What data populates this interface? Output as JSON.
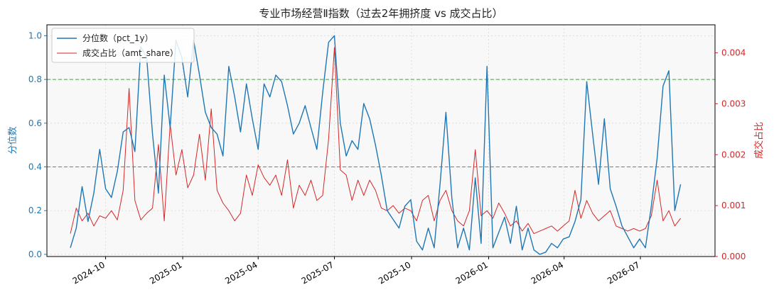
{
  "chart_data": {
    "type": "line",
    "title": "专业市场经营Ⅱ指数（过去2年拥挤度 vs 成交占比）",
    "xlabel": "",
    "ylabel_left": "分位数",
    "ylabel_right": "成交占比",
    "x_ticks": [
      "2024-10",
      "2025-01",
      "2025-04",
      "2025-07",
      "2025-10",
      "2026-01",
      "2026-04",
      "2026-07"
    ],
    "y_left_ticks": [
      "0.0",
      "0.2",
      "0.4",
      "0.6",
      "0.8",
      "1.0"
    ],
    "y_right_ticks": [
      "0.000",
      "0.001",
      "0.002",
      "0.003",
      "0.004"
    ],
    "ylim_left": [
      -0.01,
      1.05
    ],
    "ylim_right": [
      0,
      0.00455
    ],
    "xlim": [
      "2024-07-23",
      "2026-09-28"
    ],
    "grid": true,
    "legend": "top-left",
    "hlines": [
      {
        "axis": "left",
        "y": 0.8,
        "color": "#4a9a4a"
      },
      {
        "axis": "left",
        "y": 0.4,
        "color": "#d9534f"
      }
    ],
    "colors": {
      "pct_1y": "#1f77b4",
      "amt_share": "#d62728"
    },
    "series": [
      {
        "name": "分位数（pct_1y）",
        "axis": "left",
        "x": [
          "2024-08-20",
          "2024-08-27",
          "2024-09-03",
          "2024-09-10",
          "2024-09-17",
          "2024-09-24",
          "2024-10-01",
          "2024-10-08",
          "2024-10-15",
          "2024-10-22",
          "2024-10-29",
          "2024-11-05",
          "2024-11-12",
          "2024-11-19",
          "2024-11-26",
          "2024-12-03",
          "2024-12-10",
          "2024-12-17",
          "2024-12-24",
          "2024-12-31",
          "2025-01-07",
          "2025-01-14",
          "2025-01-21",
          "2025-01-28",
          "2025-02-04",
          "2025-02-11",
          "2025-02-18",
          "2025-02-25",
          "2025-03-04",
          "2025-03-11",
          "2025-03-18",
          "2025-03-25",
          "2025-04-01",
          "2025-04-08",
          "2025-04-15",
          "2025-04-22",
          "2025-04-29",
          "2025-05-06",
          "2025-05-13",
          "2025-05-20",
          "2025-05-27",
          "2025-06-03",
          "2025-06-10",
          "2025-06-17",
          "2025-06-24",
          "2025-07-01",
          "2025-07-08",
          "2025-07-15",
          "2025-07-22",
          "2025-07-29",
          "2025-08-05",
          "2025-08-12",
          "2025-08-19",
          "2025-08-26",
          "2025-09-02",
          "2025-09-09",
          "2025-09-16",
          "2025-09-23",
          "2025-09-30",
          "2025-10-07",
          "2025-10-14",
          "2025-10-21",
          "2025-10-28",
          "2025-11-04",
          "2025-11-11",
          "2025-11-18",
          "2025-11-25",
          "2025-12-02",
          "2025-12-09",
          "2025-12-16",
          "2025-12-23",
          "2025-12-30",
          "2026-01-06",
          "2026-01-13",
          "2026-01-20",
          "2026-01-27",
          "2026-02-03",
          "2026-02-10",
          "2026-02-17",
          "2026-02-24",
          "2026-03-03",
          "2026-03-10",
          "2026-03-17",
          "2026-03-24",
          "2026-03-31",
          "2026-04-07",
          "2026-04-14",
          "2026-04-21",
          "2026-04-28",
          "2026-05-05",
          "2026-05-12",
          "2026-05-19",
          "2026-05-26",
          "2026-06-02",
          "2026-06-09",
          "2026-06-16",
          "2026-06-23",
          "2026-06-30",
          "2026-07-07",
          "2026-07-14",
          "2026-07-21",
          "2026-07-28",
          "2026-08-04",
          "2026-08-11",
          "2026-08-18"
        ],
        "values": [
          0.03,
          0.12,
          0.31,
          0.15,
          0.28,
          0.48,
          0.3,
          0.26,
          0.38,
          0.56,
          0.58,
          0.47,
          0.95,
          0.9,
          0.55,
          0.28,
          0.82,
          0.58,
          0.98,
          0.9,
          0.72,
          0.98,
          0.82,
          0.65,
          0.58,
          0.55,
          0.45,
          0.86,
          0.72,
          0.56,
          0.78,
          0.62,
          0.48,
          0.78,
          0.72,
          0.82,
          0.79,
          0.68,
          0.55,
          0.6,
          0.68,
          0.58,
          0.48,
          0.74,
          0.97,
          1.0,
          0.6,
          0.45,
          0.52,
          0.48,
          0.69,
          0.62,
          0.5,
          0.36,
          0.2,
          0.16,
          0.12,
          0.22,
          0.25,
          0.06,
          0.02,
          0.12,
          0.03,
          0.32,
          0.65,
          0.26,
          0.03,
          0.12,
          0.02,
          0.35,
          0.05,
          0.86,
          0.03,
          0.1,
          0.17,
          0.05,
          0.22,
          0.02,
          0.12,
          0.02,
          0.0,
          0.01,
          0.05,
          0.03,
          0.07,
          0.08,
          0.15,
          0.25,
          0.79,
          0.55,
          0.32,
          0.62,
          0.3,
          0.22,
          0.13,
          0.08,
          0.03,
          0.07,
          0.03,
          0.22,
          0.44,
          0.77,
          0.84,
          0.2,
          0.32
        ]
      },
      {
        "name": "成交占比（amt_share）",
        "axis": "right",
        "x": [
          "2024-08-20",
          "2024-08-27",
          "2024-09-03",
          "2024-09-10",
          "2024-09-17",
          "2024-09-24",
          "2024-10-01",
          "2024-10-08",
          "2024-10-15",
          "2024-10-22",
          "2024-10-29",
          "2024-11-05",
          "2024-11-12",
          "2024-11-19",
          "2024-11-26",
          "2024-12-03",
          "2024-12-10",
          "2024-12-17",
          "2024-12-24",
          "2024-12-31",
          "2025-01-07",
          "2025-01-14",
          "2025-01-21",
          "2025-01-28",
          "2025-02-04",
          "2025-02-11",
          "2025-02-18",
          "2025-02-25",
          "2025-03-04",
          "2025-03-11",
          "2025-03-18",
          "2025-03-25",
          "2025-04-01",
          "2025-04-08",
          "2025-04-15",
          "2025-04-22",
          "2025-04-29",
          "2025-05-06",
          "2025-05-13",
          "2025-05-20",
          "2025-05-27",
          "2025-06-03",
          "2025-06-10",
          "2025-06-17",
          "2025-06-24",
          "2025-07-01",
          "2025-07-08",
          "2025-07-15",
          "2025-07-22",
          "2025-07-29",
          "2025-08-05",
          "2025-08-12",
          "2025-08-19",
          "2025-08-26",
          "2025-09-02",
          "2025-09-09",
          "2025-09-16",
          "2025-09-23",
          "2025-09-30",
          "2025-10-07",
          "2025-10-14",
          "2025-10-21",
          "2025-10-28",
          "2025-11-04",
          "2025-11-11",
          "2025-11-18",
          "2025-11-25",
          "2025-12-02",
          "2025-12-09",
          "2025-12-16",
          "2025-12-23",
          "2025-12-30",
          "2026-01-06",
          "2026-01-13",
          "2026-01-20",
          "2026-01-27",
          "2026-02-03",
          "2026-02-10",
          "2026-02-17",
          "2026-02-24",
          "2026-03-03",
          "2026-03-10",
          "2026-03-17",
          "2026-03-24",
          "2026-03-31",
          "2026-04-07",
          "2026-04-14",
          "2026-04-21",
          "2026-04-28",
          "2026-05-05",
          "2026-05-12",
          "2026-05-19",
          "2026-05-26",
          "2026-06-02",
          "2026-06-09",
          "2026-06-16",
          "2026-06-23",
          "2026-06-30",
          "2026-07-07",
          "2026-07-14",
          "2026-07-21",
          "2026-07-28",
          "2026-08-04",
          "2026-08-11",
          "2026-08-18"
        ],
        "values": [
          0.00045,
          0.00095,
          0.0007,
          0.00085,
          0.0006,
          0.0008,
          0.00075,
          0.0009,
          0.00072,
          0.0013,
          0.0033,
          0.0011,
          0.00072,
          0.00085,
          0.00095,
          0.0022,
          0.0007,
          0.0026,
          0.0016,
          0.0021,
          0.00135,
          0.0016,
          0.0024,
          0.0015,
          0.0029,
          0.0013,
          0.00105,
          0.0009,
          0.0007,
          0.00085,
          0.0016,
          0.0012,
          0.0018,
          0.00155,
          0.0014,
          0.0016,
          0.0012,
          0.0019,
          0.00095,
          0.0014,
          0.0012,
          0.0015,
          0.0011,
          0.0012,
          0.0023,
          0.0041,
          0.0017,
          0.0016,
          0.0011,
          0.0015,
          0.0012,
          0.0015,
          0.0013,
          0.00095,
          0.0009,
          0.001,
          0.00085,
          0.00095,
          0.0009,
          0.0007,
          0.0011,
          0.0012,
          0.0007,
          0.0011,
          0.0013,
          0.0009,
          0.0007,
          0.0006,
          0.0009,
          0.0021,
          0.0008,
          0.0009,
          0.00075,
          0.00105,
          0.00085,
          0.0006,
          0.0007,
          0.0005,
          0.00065,
          0.00045,
          0.0005,
          0.00055,
          0.0006,
          0.0005,
          0.0006,
          0.0007,
          0.0013,
          0.00075,
          0.0011,
          0.00085,
          0.0007,
          0.0008,
          0.0009,
          0.0006,
          0.00055,
          0.0005,
          0.00055,
          0.0005,
          0.00055,
          0.0008,
          0.0015,
          0.0007,
          0.0009,
          0.0006,
          0.00075
        ]
      }
    ]
  }
}
